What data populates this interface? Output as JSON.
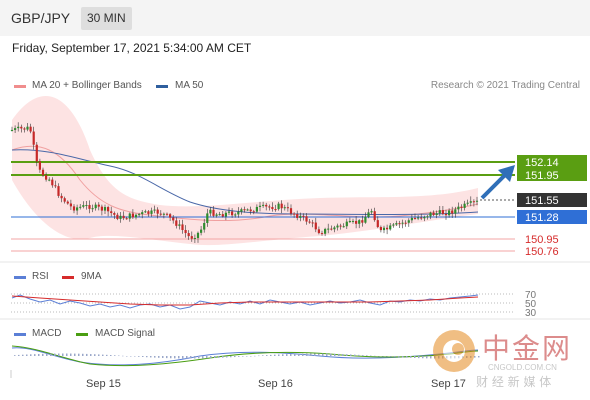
{
  "header": {
    "pair": "GBP/JPY",
    "timeframe": "30 MIN"
  },
  "datetime": "Friday, September 17, 2021 5:34:00 AM CET",
  "price_panel": {
    "legend": [
      {
        "label": "MA 20 + Bollinger Bands",
        "color": "#f08d8d"
      },
      {
        "label": "MA 50",
        "color": "#2f5f9e"
      }
    ],
    "credit": "Research © 2021 Trading Central",
    "levels": [
      {
        "label": "152.14",
        "value": 152.14,
        "color": "#5a9e12",
        "box": true
      },
      {
        "label": "151.95",
        "value": 151.95,
        "color": "#5a9e12",
        "box": true
      },
      {
        "label": "151.55",
        "value": 151.55,
        "color": "#333333",
        "box": true
      },
      {
        "label": "151.28",
        "value": 151.28,
        "color": "#2f6fd6",
        "box": true
      },
      {
        "label": "150.95",
        "value": 150.95,
        "color": "#f3a5a5",
        "box": false
      },
      {
        "label": "150.76",
        "value": 150.76,
        "color": "#f3a5a5",
        "box": false
      }
    ]
  },
  "rsi_panel": {
    "legend": [
      {
        "label": "RSI",
        "color": "#5b7fd6"
      },
      {
        "label": "9MA",
        "color": "#d62b2b"
      }
    ],
    "ticks": [
      "70",
      "50",
      "30"
    ]
  },
  "macd_panel": {
    "legend": [
      {
        "label": "MACD",
        "color": "#5b7fd6"
      },
      {
        "label": "MACD Signal",
        "color": "#4a9e12"
      }
    ]
  },
  "x_axis": [
    "Sep 15",
    "Sep 16",
    "Sep 17"
  ],
  "watermark": {
    "cn": "中金网",
    "sub": "财 经 新 媒 体",
    "url": "CNGOLD.COM.CN"
  }
}
